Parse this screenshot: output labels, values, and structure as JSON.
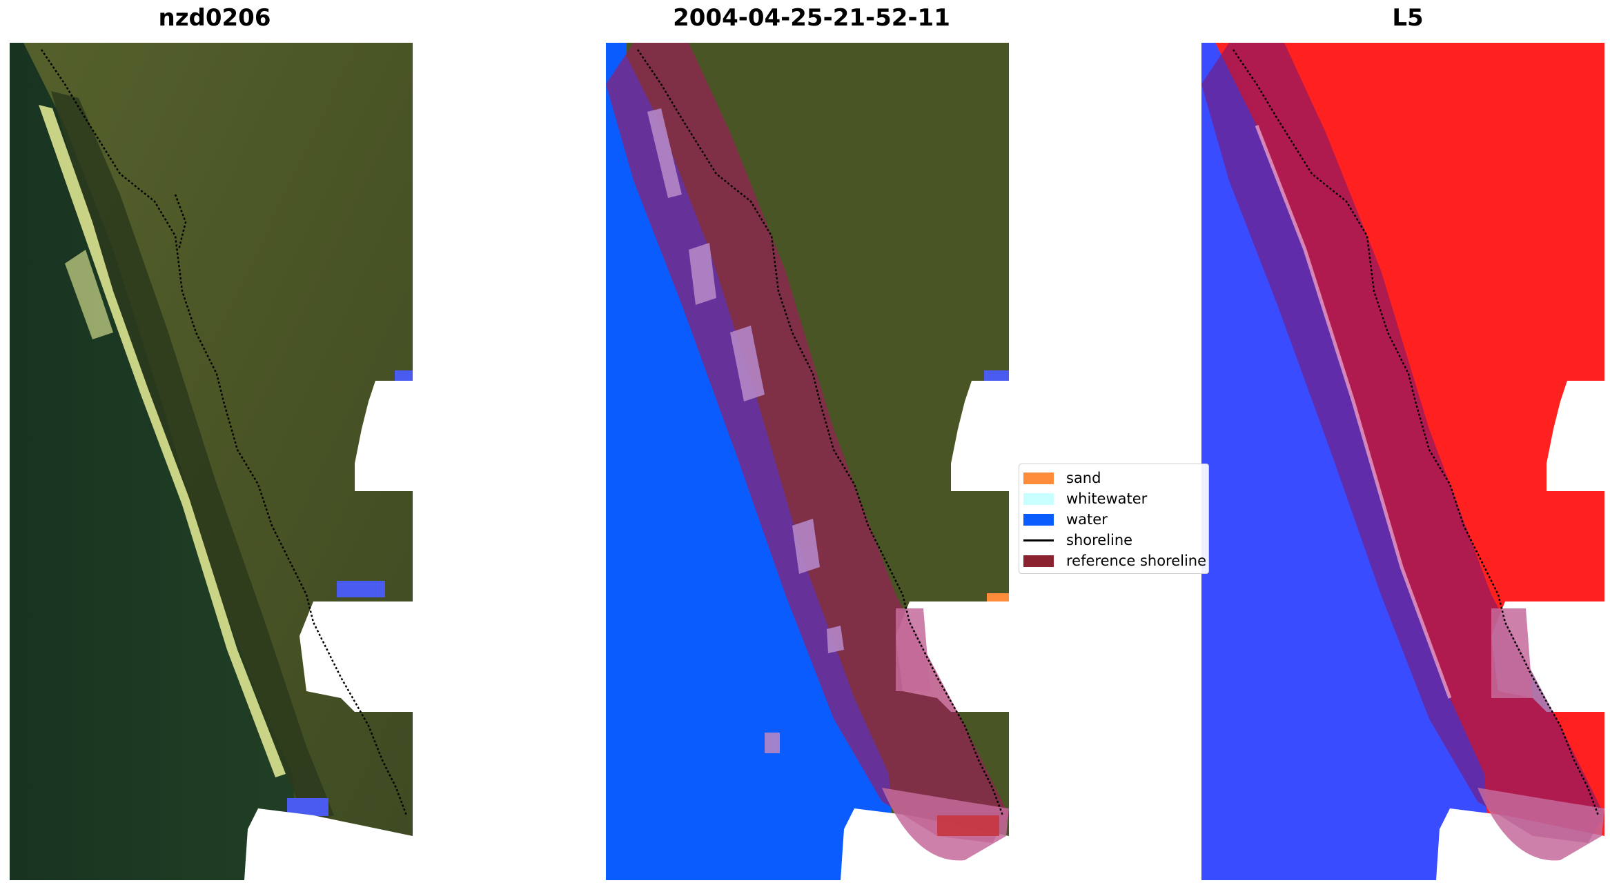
{
  "panels": [
    {
      "title": "nzd0206",
      "view": "rgb-image"
    },
    {
      "title": "2004-04-25-21-52-11",
      "view": "classified-image"
    },
    {
      "title": "L5",
      "view": "water-index-image"
    }
  ],
  "legend": {
    "entries": [
      {
        "label": "sand",
        "color": "#ff8c3a",
        "kind": "patch"
      },
      {
        "label": "whitewater",
        "color": "#c8ffff",
        "kind": "patch"
      },
      {
        "label": "water",
        "color": "#0a5cff",
        "kind": "patch"
      },
      {
        "label": "shoreline",
        "color": "#000000",
        "kind": "line"
      },
      {
        "label": "reference shoreline",
        "color": "#8b2230",
        "kind": "patch"
      }
    ]
  },
  "colors": {
    "sea_rgb": "#1d3b22",
    "land_rgb": "#4e5a28",
    "surf": "#f2f4a0",
    "water_class": "#0a5cff",
    "buffer_overlay": "#a0185a",
    "land_index": "#ff2020",
    "water_index": "#3a4cff",
    "no_data": "#ffffff"
  }
}
